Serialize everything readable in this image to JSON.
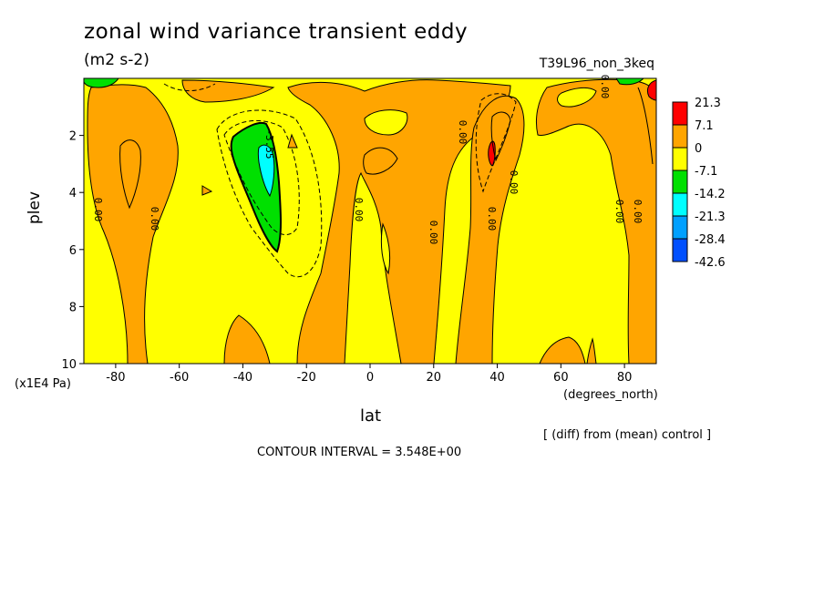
{
  "title": "zonal wind variance transient eddy",
  "units": "(m2 s-2)",
  "run_label": "T39L96_non_3keq",
  "footer_note": "[ (diff) from (mean) control ]",
  "contour_interval": "CONTOUR INTERVAL = 3.548E+00",
  "chart_data": {
    "type": "heatmap",
    "title": "zonal wind variance transient eddy",
    "xlabel": "lat",
    "x_units": "(degrees_north)",
    "ylabel": "plev",
    "y_units": "(x1E4 Pa)",
    "xlim": [
      -90,
      90
    ],
    "ylim": [
      10,
      0
    ],
    "x_ticks": [
      "-80",
      "-60",
      "-40",
      "-20",
      "0",
      "20",
      "40",
      "60",
      "80"
    ],
    "x_tick_values": [
      -80,
      -60,
      -40,
      -20,
      0,
      20,
      40,
      60,
      80
    ],
    "y_ticks": [
      "2",
      "4",
      "6",
      "8",
      "10"
    ],
    "y_tick_values": [
      2,
      4,
      6,
      8,
      10
    ],
    "colorbar": {
      "labels": [
        "21.3",
        "7.1",
        "0",
        "-7.1",
        "-14.2",
        "-21.3",
        "-28.4",
        "-42.6"
      ],
      "colors": [
        "#ff0000",
        "#ffa500",
        "#ffff00",
        "#00e000",
        "#00ffff",
        "#00a0ff",
        "#0050ff"
      ]
    },
    "contour_labels": [
      "0.00",
      "0.00",
      "-3.55",
      "0.00",
      "0.00",
      "0.00",
      "0.00",
      "0.00",
      "0.00",
      "0.00",
      "0.00"
    ]
  }
}
